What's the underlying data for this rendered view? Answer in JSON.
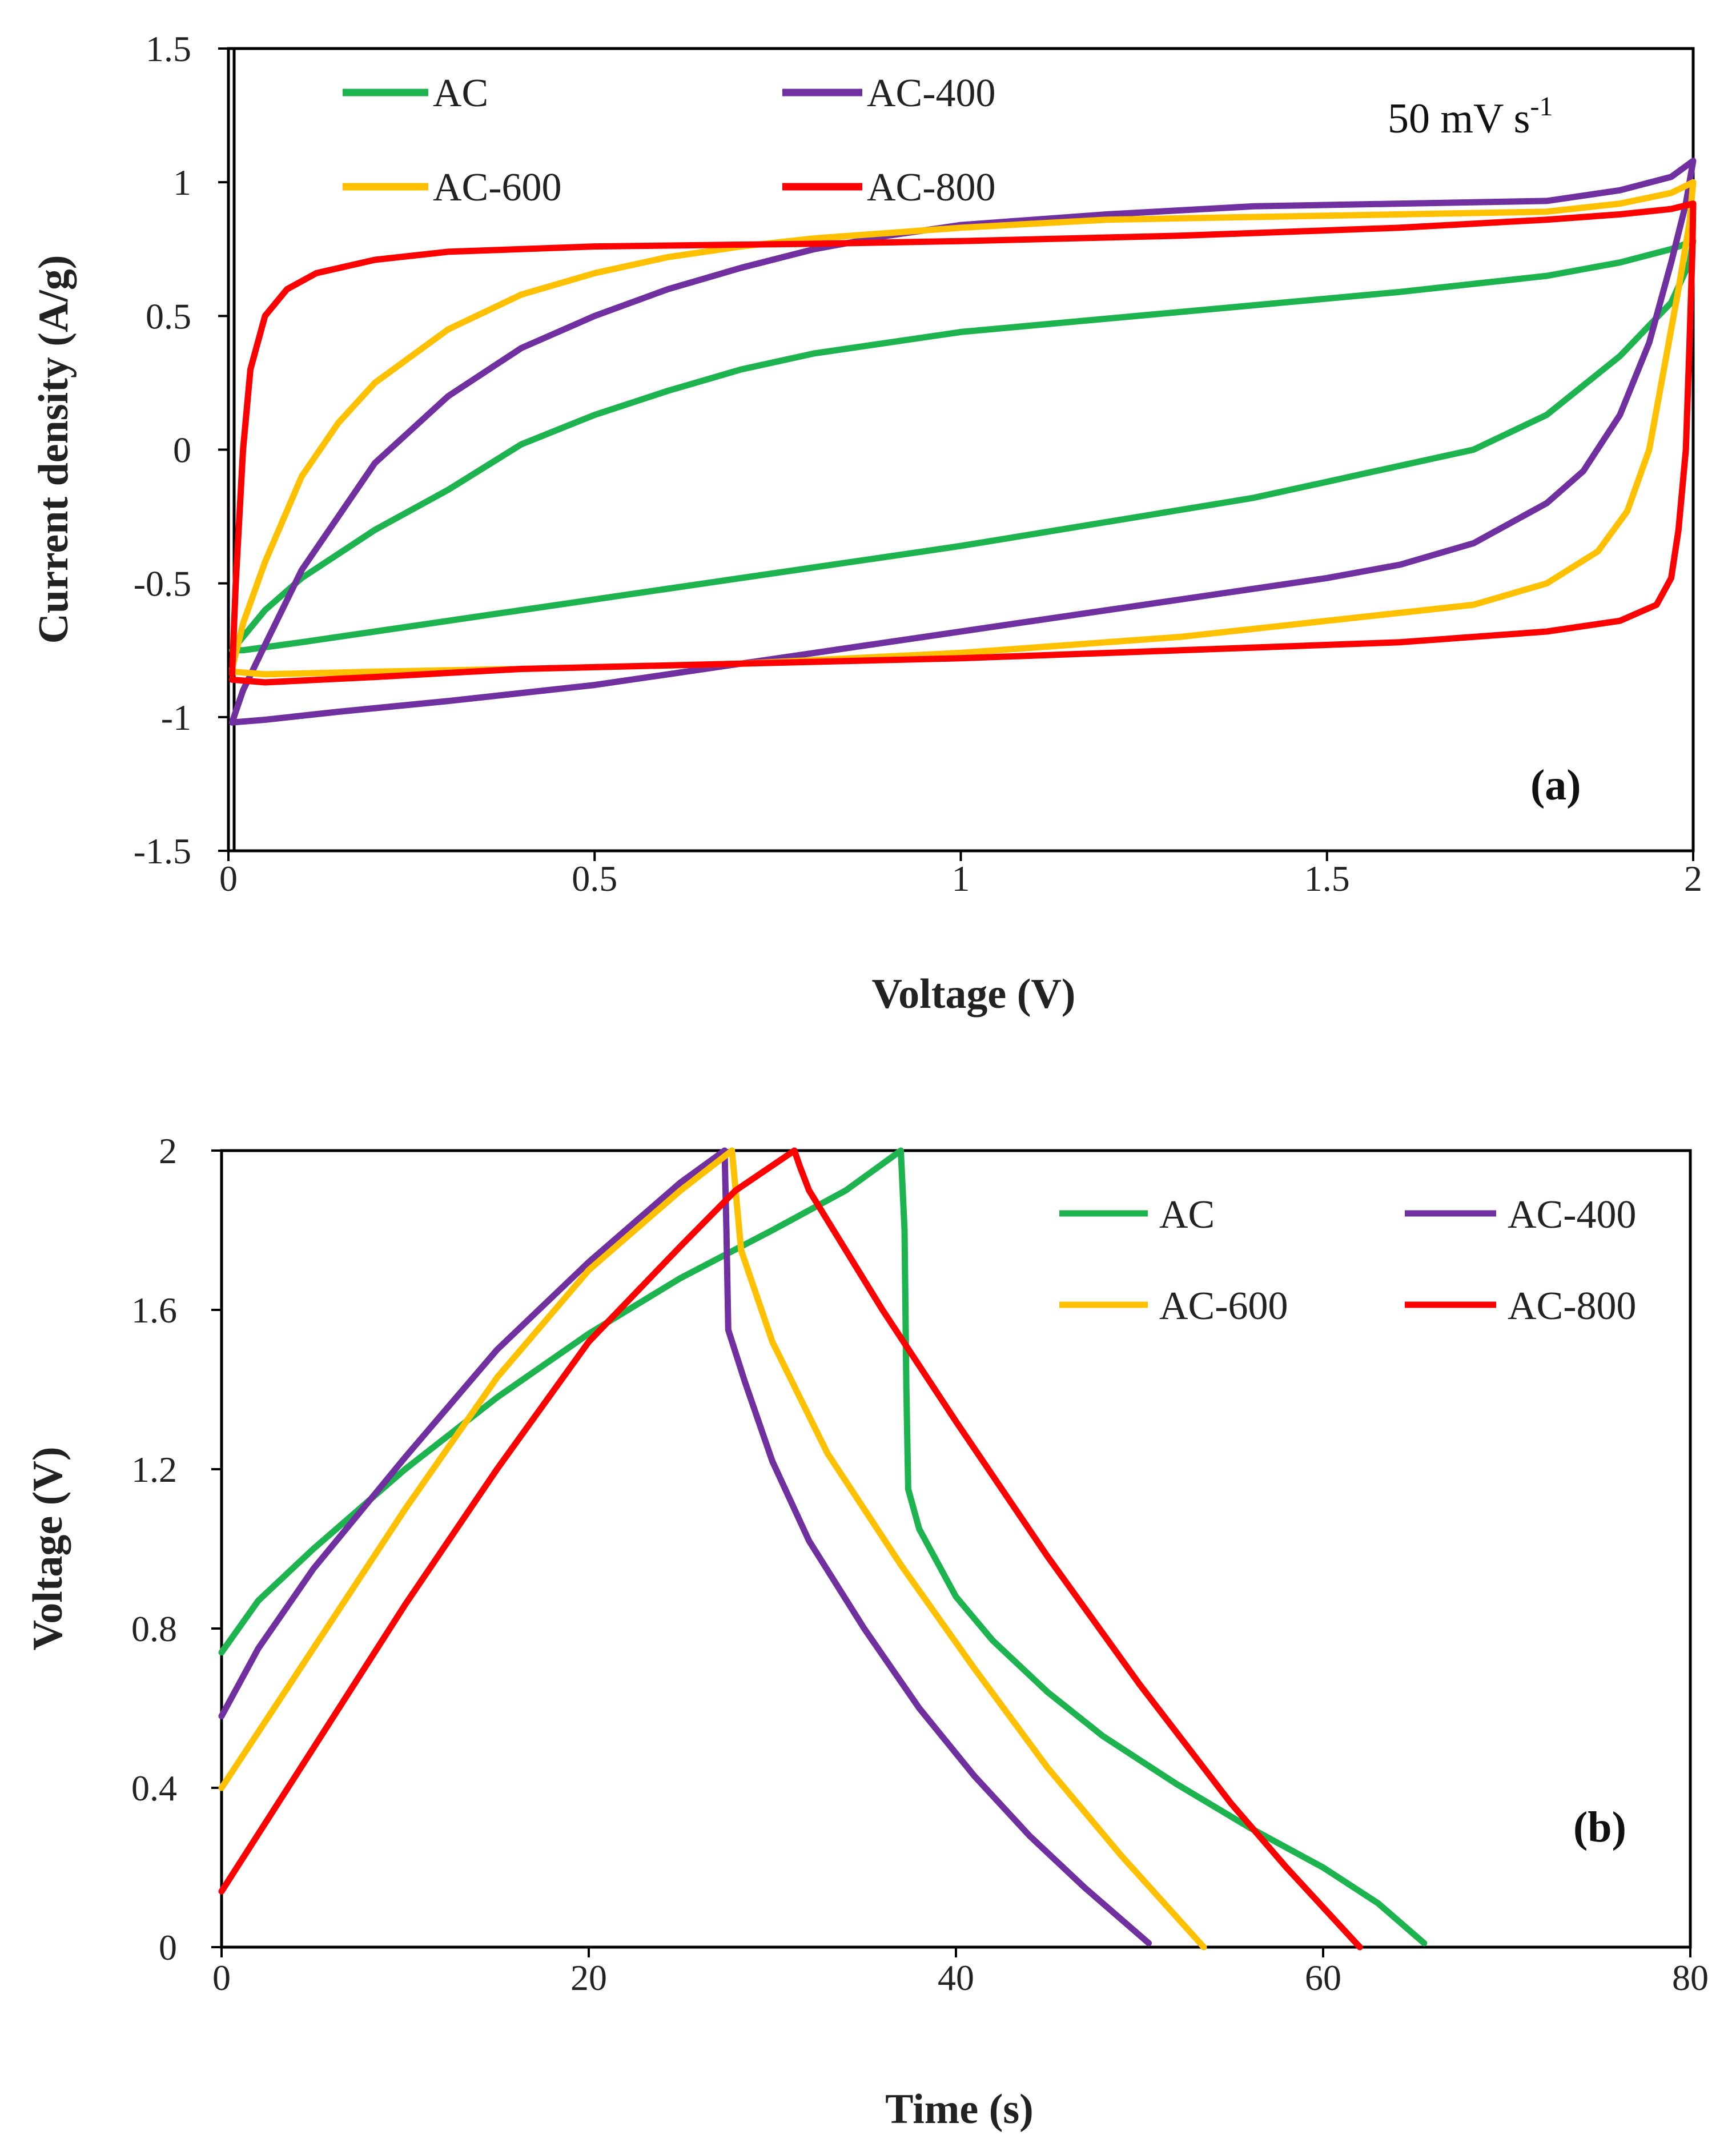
{
  "chart_data": [
    {
      "type": "line",
      "panel_label": "(a)",
      "annotation": "50 mV s",
      "annotation_sup": "-1",
      "xlabel": "Voltage (V)",
      "ylabel": "Current density (A/g)",
      "xlim": [
        0,
        2
      ],
      "ylim": [
        -1.5,
        1.5
      ],
      "xticks": [
        0,
        0.5,
        1,
        1.5,
        2
      ],
      "xtick_labels": [
        "0",
        "0.5",
        "1",
        "1.5",
        "2"
      ],
      "yticks": [
        -1.5,
        -1,
        -0.5,
        0,
        0.5,
        1,
        1.5
      ],
      "ytick_labels": [
        "-1.5",
        "-1",
        "-0.5",
        "0",
        "0.5",
        "1",
        "1.5"
      ],
      "legend": [
        "AC",
        "AC-400",
        "AC-600",
        "AC-800"
      ],
      "series": [
        {
          "name": "AC",
          "color": "#1db34f",
          "points": [
            [
              0.005,
              -0.75
            ],
            [
              0.05,
              -0.6
            ],
            [
              0.1,
              -0.48
            ],
            [
              0.2,
              -0.3
            ],
            [
              0.3,
              -0.15
            ],
            [
              0.4,
              0.02
            ],
            [
              0.5,
              0.13
            ],
            [
              0.6,
              0.22
            ],
            [
              0.7,
              0.3
            ],
            [
              0.8,
              0.36
            ],
            [
              0.9,
              0.4
            ],
            [
              1.0,
              0.44
            ],
            [
              1.2,
              0.49
            ],
            [
              1.4,
              0.54
            ],
            [
              1.6,
              0.59
            ],
            [
              1.8,
              0.65
            ],
            [
              1.9,
              0.7
            ],
            [
              1.97,
              0.75
            ],
            [
              2.0,
              0.78
            ],
            [
              1.995,
              0.7
            ],
            [
              1.97,
              0.55
            ],
            [
              1.9,
              0.35
            ],
            [
              1.8,
              0.13
            ],
            [
              1.7,
              0.0
            ],
            [
              1.6,
              -0.06
            ],
            [
              1.5,
              -0.12
            ],
            [
              1.4,
              -0.18
            ],
            [
              1.2,
              -0.27
            ],
            [
              1.0,
              -0.36
            ],
            [
              0.8,
              -0.44
            ],
            [
              0.6,
              -0.52
            ],
            [
              0.4,
              -0.6
            ],
            [
              0.2,
              -0.68
            ],
            [
              0.1,
              -0.72
            ],
            [
              0.02,
              -0.75
            ],
            [
              0.005,
              -0.75
            ]
          ]
        },
        {
          "name": "AC-400",
          "color": "#7030a0",
          "points": [
            [
              0.005,
              -1.02
            ],
            [
              0.02,
              -0.9
            ],
            [
              0.05,
              -0.73
            ],
            [
              0.1,
              -0.45
            ],
            [
              0.15,
              -0.25
            ],
            [
              0.2,
              -0.05
            ],
            [
              0.3,
              0.2
            ],
            [
              0.4,
              0.38
            ],
            [
              0.5,
              0.5
            ],
            [
              0.6,
              0.6
            ],
            [
              0.7,
              0.68
            ],
            [
              0.8,
              0.75
            ],
            [
              0.9,
              0.8
            ],
            [
              1.0,
              0.84
            ],
            [
              1.2,
              0.88
            ],
            [
              1.4,
              0.91
            ],
            [
              1.6,
              0.92
            ],
            [
              1.8,
              0.93
            ],
            [
              1.9,
              0.97
            ],
            [
              1.97,
              1.02
            ],
            [
              2.0,
              1.08
            ],
            [
              1.99,
              0.92
            ],
            [
              1.97,
              0.7
            ],
            [
              1.94,
              0.4
            ],
            [
              1.9,
              0.13
            ],
            [
              1.85,
              -0.08
            ],
            [
              1.8,
              -0.2
            ],
            [
              1.7,
              -0.35
            ],
            [
              1.6,
              -0.43
            ],
            [
              1.5,
              -0.48
            ],
            [
              1.3,
              -0.56
            ],
            [
              1.1,
              -0.64
            ],
            [
              0.9,
              -0.72
            ],
            [
              0.7,
              -0.8
            ],
            [
              0.5,
              -0.88
            ],
            [
              0.3,
              -0.94
            ],
            [
              0.15,
              -0.98
            ],
            [
              0.05,
              -1.01
            ],
            [
              0.005,
              -1.02
            ]
          ]
        },
        {
          "name": "AC-600",
          "color": "#ffc000",
          "points": [
            [
              0.005,
              -0.82
            ],
            [
              0.02,
              -0.65
            ],
            [
              0.05,
              -0.42
            ],
            [
              0.1,
              -0.1
            ],
            [
              0.15,
              0.1
            ],
            [
              0.2,
              0.25
            ],
            [
              0.3,
              0.45
            ],
            [
              0.4,
              0.58
            ],
            [
              0.5,
              0.66
            ],
            [
              0.6,
              0.72
            ],
            [
              0.7,
              0.76
            ],
            [
              0.8,
              0.79
            ],
            [
              1.0,
              0.83
            ],
            [
              1.2,
              0.86
            ],
            [
              1.4,
              0.87
            ],
            [
              1.6,
              0.88
            ],
            [
              1.8,
              0.89
            ],
            [
              1.9,
              0.92
            ],
            [
              1.97,
              0.96
            ],
            [
              2.0,
              1.0
            ],
            [
              1.995,
              0.85
            ],
            [
              1.98,
              0.6
            ],
            [
              1.96,
              0.3
            ],
            [
              1.94,
              0.0
            ],
            [
              1.91,
              -0.23
            ],
            [
              1.87,
              -0.38
            ],
            [
              1.8,
              -0.5
            ],
            [
              1.7,
              -0.58
            ],
            [
              1.5,
              -0.64
            ],
            [
              1.3,
              -0.7
            ],
            [
              1.0,
              -0.76
            ],
            [
              0.7,
              -0.8
            ],
            [
              0.4,
              -0.82
            ],
            [
              0.2,
              -0.83
            ],
            [
              0.05,
              -0.84
            ],
            [
              0.005,
              -0.83
            ]
          ]
        },
        {
          "name": "AC-800",
          "color": "#ff0000",
          "points": [
            [
              0.005,
              -0.84
            ],
            [
              0.01,
              -0.5
            ],
            [
              0.02,
              0.0
            ],
            [
              0.03,
              0.3
            ],
            [
              0.05,
              0.5
            ],
            [
              0.08,
              0.6
            ],
            [
              0.12,
              0.66
            ],
            [
              0.2,
              0.71
            ],
            [
              0.3,
              0.74
            ],
            [
              0.5,
              0.76
            ],
            [
              0.8,
              0.77
            ],
            [
              1.0,
              0.78
            ],
            [
              1.3,
              0.8
            ],
            [
              1.6,
              0.83
            ],
            [
              1.8,
              0.86
            ],
            [
              1.9,
              0.88
            ],
            [
              1.97,
              0.9
            ],
            [
              2.0,
              0.92
            ],
            [
              1.999,
              0.75
            ],
            [
              1.995,
              0.4
            ],
            [
              1.99,
              0.0
            ],
            [
              1.98,
              -0.3
            ],
            [
              1.97,
              -0.48
            ],
            [
              1.95,
              -0.58
            ],
            [
              1.9,
              -0.64
            ],
            [
              1.8,
              -0.68
            ],
            [
              1.6,
              -0.72
            ],
            [
              1.3,
              -0.75
            ],
            [
              1.0,
              -0.78
            ],
            [
              0.7,
              -0.8
            ],
            [
              0.4,
              -0.82
            ],
            [
              0.2,
              -0.85
            ],
            [
              0.05,
              -0.87
            ],
            [
              0.005,
              -0.86
            ]
          ]
        }
      ]
    },
    {
      "type": "line",
      "panel_label": "(b)",
      "xlabel": "Time (s)",
      "ylabel": "Voltage (V)",
      "xlim": [
        0,
        80
      ],
      "ylim": [
        0,
        2
      ],
      "xticks": [
        0,
        20,
        40,
        60,
        80
      ],
      "xtick_labels": [
        "0",
        "20",
        "40",
        "60",
        "80"
      ],
      "yticks": [
        0,
        0.4,
        0.8,
        1.2,
        1.6,
        2
      ],
      "ytick_labels": [
        "0",
        "0.4",
        "0.8",
        "1.2",
        "1.6",
        "2"
      ],
      "legend": [
        "AC",
        "AC-400",
        "AC-600",
        "AC-800"
      ],
      "series": [
        {
          "name": "AC",
          "color": "#1db34f",
          "points": [
            [
              0,
              0.74
            ],
            [
              2,
              0.87
            ],
            [
              5,
              1.0
            ],
            [
              10,
              1.2
            ],
            [
              15,
              1.38
            ],
            [
              20,
              1.54
            ],
            [
              25,
              1.68
            ],
            [
              30,
              1.8
            ],
            [
              34,
              1.9
            ],
            [
              37,
              2.0
            ],
            [
              37.2,
              1.8
            ],
            [
              37.3,
              1.4
            ],
            [
              37.4,
              1.15
            ],
            [
              38,
              1.05
            ],
            [
              40,
              0.88
            ],
            [
              42,
              0.77
            ],
            [
              45,
              0.64
            ],
            [
              48,
              0.53
            ],
            [
              52,
              0.41
            ],
            [
              56,
              0.3
            ],
            [
              60,
              0.2
            ],
            [
              63,
              0.11
            ],
            [
              65.5,
              0.01
            ]
          ]
        },
        {
          "name": "AC-400",
          "color": "#7030a0",
          "points": [
            [
              0,
              0.58
            ],
            [
              2,
              0.75
            ],
            [
              5,
              0.95
            ],
            [
              10,
              1.23
            ],
            [
              15,
              1.5
            ],
            [
              20,
              1.72
            ],
            [
              25,
              1.92
            ],
            [
              27.4,
              2.0
            ],
            [
              27.5,
              1.8
            ],
            [
              27.6,
              1.55
            ],
            [
              28.5,
              1.42
            ],
            [
              30,
              1.22
            ],
            [
              32,
              1.02
            ],
            [
              35,
              0.8
            ],
            [
              38,
              0.6
            ],
            [
              41,
              0.43
            ],
            [
              44,
              0.28
            ],
            [
              47,
              0.15
            ],
            [
              50.5,
              0.01
            ]
          ]
        },
        {
          "name": "AC-600",
          "color": "#ffc000",
          "points": [
            [
              0,
              0.4
            ],
            [
              5,
              0.75
            ],
            [
              10,
              1.1
            ],
            [
              15,
              1.43
            ],
            [
              20,
              1.7
            ],
            [
              25,
              1.9
            ],
            [
              27.8,
              2.0
            ],
            [
              28.1,
              1.85
            ],
            [
              28.3,
              1.75
            ],
            [
              30,
              1.52
            ],
            [
              33,
              1.24
            ],
            [
              37,
              0.96
            ],
            [
              41,
              0.7
            ],
            [
              45,
              0.45
            ],
            [
              49,
              0.23
            ],
            [
              53.5,
              0.0
            ]
          ]
        },
        {
          "name": "AC-800",
          "color": "#ff0000",
          "points": [
            [
              0,
              0.14
            ],
            [
              5,
              0.5
            ],
            [
              10,
              0.86
            ],
            [
              15,
              1.2
            ],
            [
              20,
              1.52
            ],
            [
              25,
              1.76
            ],
            [
              28,
              1.9
            ],
            [
              31.2,
              2.0
            ],
            [
              31.5,
              1.96
            ],
            [
              32,
              1.9
            ],
            [
              36,
              1.6
            ],
            [
              40,
              1.32
            ],
            [
              45,
              0.98
            ],
            [
              50,
              0.66
            ],
            [
              55,
              0.36
            ],
            [
              58,
              0.2
            ],
            [
              62,
              0.0
            ]
          ]
        }
      ]
    }
  ]
}
